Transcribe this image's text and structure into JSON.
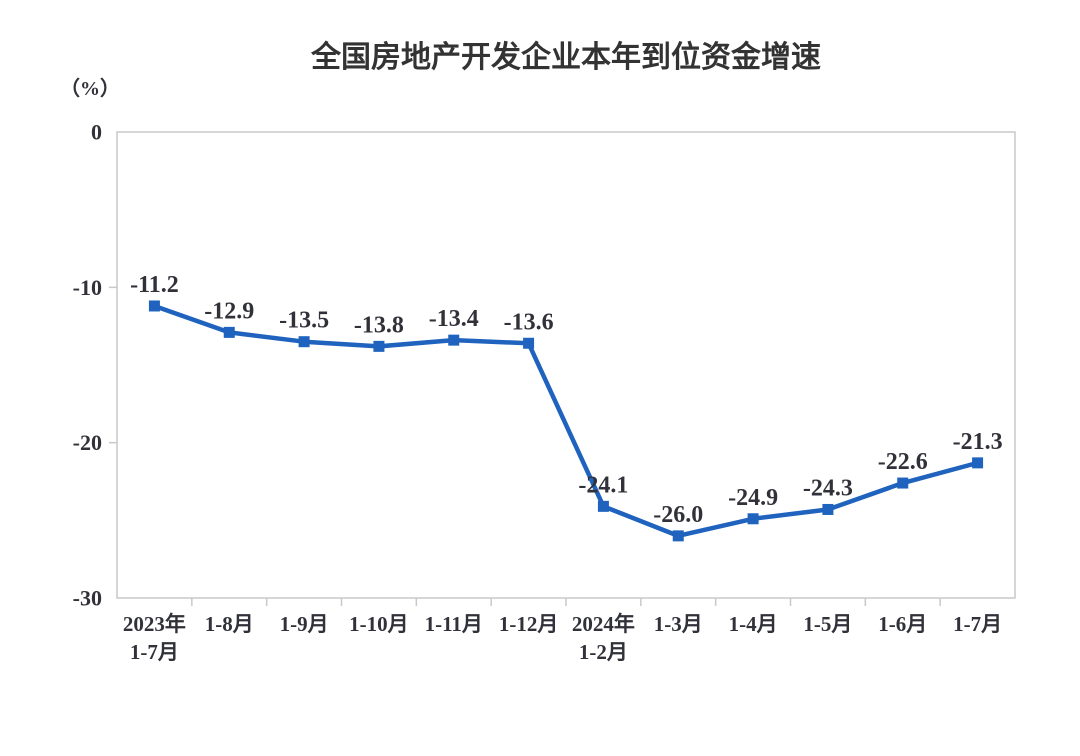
{
  "chart_data": {
    "type": "line",
    "title": "全国房地产开发企业本年到位资金增速",
    "unit_label": "（%）",
    "xlabel": "",
    "ylabel": "（%）",
    "categories": [
      "2023年\n1-7月",
      "1-8月",
      "1-9月",
      "1-10月",
      "1-11月",
      "1-12月",
      "2024年\n1-2月",
      "1-3月",
      "1-4月",
      "1-5月",
      "1-6月",
      "1-7月"
    ],
    "values": [
      -11.2,
      -12.9,
      -13.5,
      -13.8,
      -13.4,
      -13.6,
      -24.1,
      -26.0,
      -24.9,
      -24.3,
      -22.6,
      -21.3
    ],
    "labels": [
      "-11.2",
      "-12.9",
      "-13.5",
      "-13.8",
      "-13.4",
      "-13.6",
      "-24.1",
      "-26.0",
      "-24.9",
      "-24.3",
      "-22.6",
      "-21.3"
    ],
    "yticks": [
      0,
      -10,
      -20,
      -30
    ],
    "ytick_labels": [
      "0",
      "-10",
      "-20",
      "-30"
    ],
    "ylim": [
      -30,
      0
    ],
    "grid": false,
    "legend": "none",
    "colors": {
      "line": "#1F63BE",
      "marker": "#1F63BE",
      "axis": "#C9C9C9",
      "text": "#31313A",
      "title": "#333333"
    }
  }
}
